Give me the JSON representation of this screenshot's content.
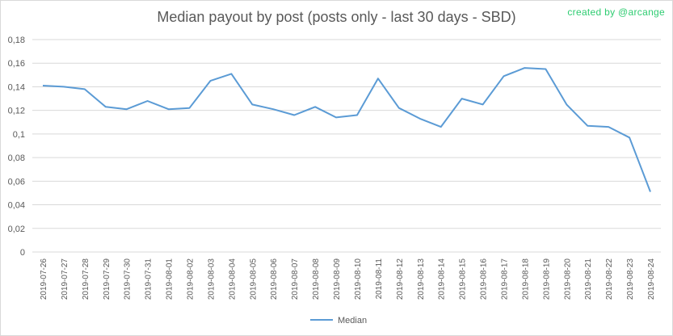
{
  "credit": "created by @arcange",
  "chart_data": {
    "type": "line",
    "title": "Median payout by post (posts only - last 30 days - SBD)",
    "xlabel": "",
    "ylabel": "",
    "ylim": [
      0,
      0.18
    ],
    "yticks": [
      "0",
      "0,02",
      "0,04",
      "0,06",
      "0,08",
      "0,1",
      "0,12",
      "0,14",
      "0,16",
      "0,18"
    ],
    "grid": true,
    "legend": "bottom",
    "color": "#5b9bd5",
    "categories": [
      "2019-07-26",
      "2019-07-27",
      "2019-07-28",
      "2019-07-29",
      "2019-07-30",
      "2019-07-31",
      "2019-08-01",
      "2019-08-02",
      "2019-08-03",
      "2019-08-04",
      "2019-08-05",
      "2019-08-06",
      "2019-08-07",
      "2019-08-08",
      "2019-08-09",
      "2019-08-10",
      "2019-08-11",
      "2019-08-12",
      "2019-08-13",
      "2019-08-14",
      "2019-08-15",
      "2019-08-16",
      "2019-08-17",
      "2019-08-18",
      "2019-08-19",
      "2019-08-20",
      "2019-08-21",
      "2019-08-22",
      "2019-08-23",
      "2019-08-24"
    ],
    "series": [
      {
        "name": "Median",
        "values": [
          0.141,
          0.14,
          0.138,
          0.123,
          0.121,
          0.128,
          0.121,
          0.122,
          0.145,
          0.151,
          0.125,
          0.121,
          0.116,
          0.123,
          0.114,
          0.116,
          0.147,
          0.122,
          0.113,
          0.106,
          0.13,
          0.125,
          0.149,
          0.156,
          0.155,
          0.125,
          0.107,
          0.106,
          0.097,
          0.051
        ]
      }
    ]
  }
}
